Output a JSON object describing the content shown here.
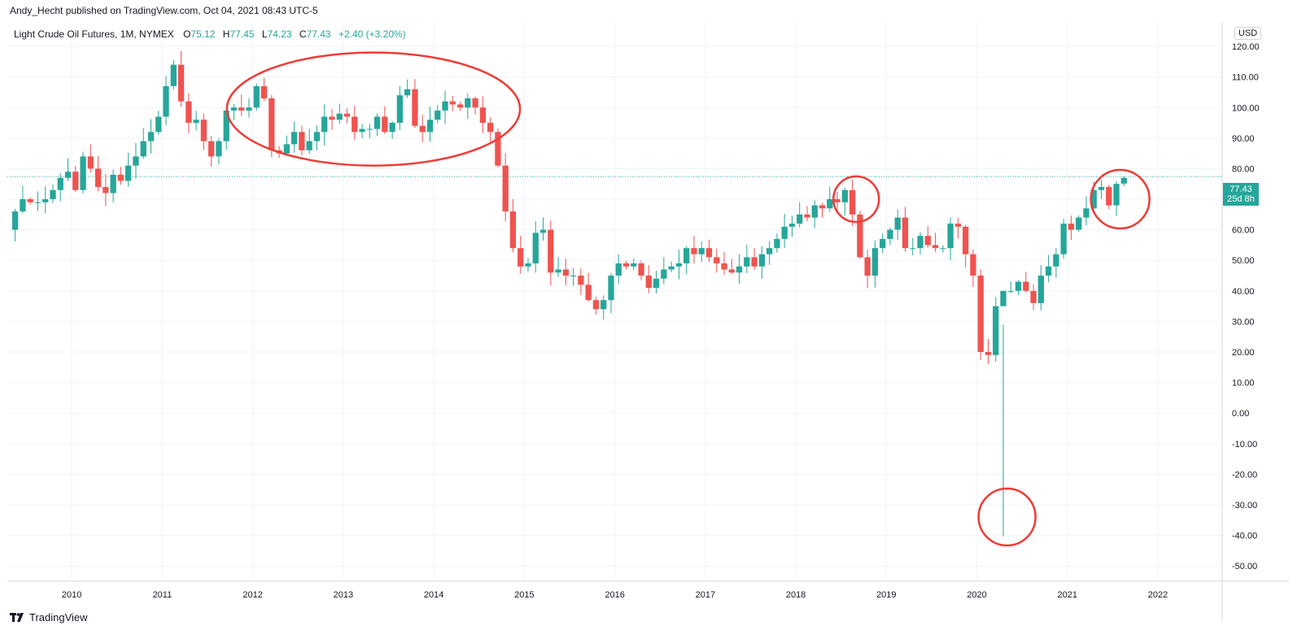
{
  "header": {
    "publish_line": "Andy_Hecht published on TradingView.com, Oct 04, 2021 08:43 UTC-5"
  },
  "legend": {
    "symbol": "Light Crude Oil Futures, 1M, NYMEX",
    "o_label": "O",
    "o_value": "75.12",
    "h_label": "H",
    "h_value": "77.45",
    "l_label": "L",
    "l_value": "74.23",
    "c_label": "C",
    "c_value": "77.43",
    "change": "+2.40 (+3.20%)"
  },
  "currency": "USD",
  "price_badge": {
    "price": "77.43",
    "countdown": "25d 8h"
  },
  "footer": {
    "brand": "TradingView"
  },
  "colors": {
    "up": "#26a69a",
    "down": "#ef5350",
    "annotation": "#ef3b36",
    "grid": "#f0f3fa"
  },
  "chart_data": {
    "type": "candlestick",
    "title": "Light Crude Oil Futures, 1M, NYMEX",
    "interval": "1M",
    "start": "2009-05",
    "x_ticks": [
      "2010",
      "2011",
      "2012",
      "2013",
      "2014",
      "2015",
      "2016",
      "2017",
      "2018",
      "2019",
      "2020",
      "2021",
      "2022"
    ],
    "y_ticks": [
      "120.00",
      "110.00",
      "100.00",
      "90.00",
      "80.00",
      "70.00",
      "60.00",
      "50.00",
      "40.00",
      "30.00",
      "20.00",
      "10.00",
      "0.00",
      "-10.00",
      "-20.00",
      "-30.00",
      "-40.00",
      "-50.00"
    ],
    "ylim": [
      -55,
      128
    ],
    "last_price": 77.43,
    "close": [
      66,
      70,
      69,
      69,
      70,
      73,
      77,
      79,
      73,
      84,
      80,
      74,
      72,
      78,
      76,
      81,
      84,
      89,
      92,
      97,
      107,
      114,
      102,
      95,
      96,
      89,
      84,
      89,
      99,
      100,
      99,
      100,
      107,
      103,
      86,
      85,
      88,
      92,
      86,
      89,
      92,
      97,
      96,
      98,
      97,
      92,
      93,
      93,
      97,
      92,
      95,
      104,
      106,
      94,
      92,
      96,
      99,
      102,
      101,
      100,
      103,
      100,
      95,
      92,
      81,
      66,
      54,
      48,
      49,
      59,
      60,
      46,
      47,
      45,
      45,
      42,
      37,
      34,
      37,
      45,
      49,
      48,
      49,
      45,
      41,
      44,
      47,
      48,
      49,
      54,
      52,
      54,
      51,
      49,
      47,
      46,
      48,
      51,
      48,
      52,
      54,
      57,
      61,
      62,
      65,
      64,
      68,
      67,
      70,
      69,
      73,
      65,
      51,
      45,
      54,
      57,
      60,
      64,
      54,
      54,
      58,
      55,
      54,
      54,
      62,
      61,
      52,
      45,
      20,
      19,
      35,
      40,
      40,
      43,
      40,
      36,
      45,
      48,
      52,
      62,
      60,
      64,
      67,
      73,
      74,
      68,
      75,
      77
    ],
    "annotations": [
      {
        "shape": "ellipse",
        "label": "2012-2014 range"
      },
      {
        "shape": "circle",
        "label": "2018 high"
      },
      {
        "shape": "circle",
        "label": "2020 negative low"
      },
      {
        "shape": "circle",
        "label": "2021 high"
      }
    ]
  }
}
